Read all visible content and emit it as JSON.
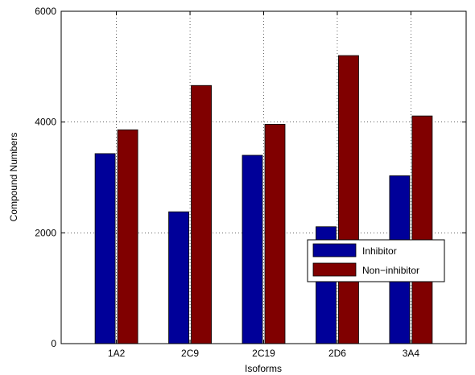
{
  "chart_data": {
    "type": "bar",
    "xlabel": "Isoforms",
    "ylabel": "Compound Numbers",
    "categories": [
      "1A2",
      "2C9",
      "2C19",
      "2D6",
      "3A4"
    ],
    "series": [
      {
        "name": "Inhibitor",
        "color": "#000099",
        "values": [
          3430,
          2380,
          3400,
          2110,
          3030
        ]
      },
      {
        "name": "Non−inhibitor",
        "color": "#800000",
        "values": [
          3860,
          4660,
          3960,
          5200,
          4110
        ]
      }
    ],
    "ylim": [
      0,
      6000
    ],
    "yticks": [
      0,
      2000,
      4000,
      6000
    ],
    "grid": true,
    "legend_position": "lower-right"
  }
}
